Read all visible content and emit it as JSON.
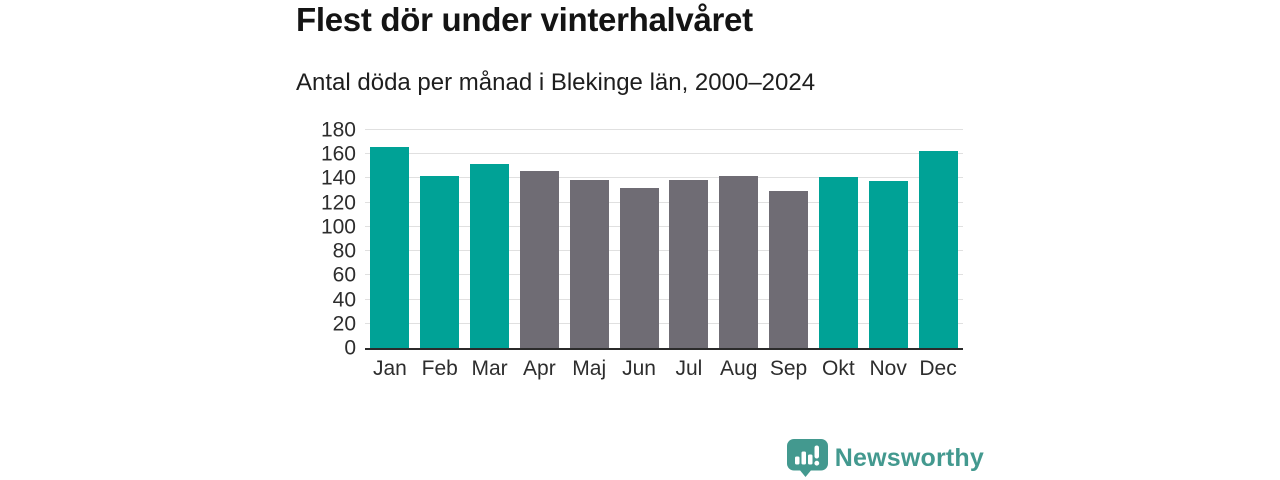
{
  "chart_data": {
    "type": "bar",
    "title": "Flest dör under vinterhalvåret",
    "subtitle": "Antal döda per månad i Blekinge län, 2000–2024",
    "categories": [
      "Jan",
      "Feb",
      "Mar",
      "Apr",
      "Maj",
      "Jun",
      "Jul",
      "Aug",
      "Sep",
      "Okt",
      "Nov",
      "Dec"
    ],
    "values": [
      166,
      142,
      152,
      146,
      139,
      132,
      139,
      142,
      130,
      141,
      138,
      163
    ],
    "highlight_flags": [
      1,
      1,
      1,
      0,
      0,
      0,
      0,
      0,
      0,
      1,
      1,
      1
    ],
    "highlight_color": "#00A296",
    "base_color": "#6F6C74",
    "xlabel": "",
    "ylabel": "",
    "ylim": [
      0,
      180
    ],
    "yticks": [
      0,
      20,
      40,
      60,
      80,
      100,
      120,
      140,
      160,
      180
    ],
    "grid": "horizontal",
    "gridline_color": "#E0E0E0",
    "axis_color": "#2B2B2B",
    "legend": "none"
  },
  "footer": {
    "brand": "Newsworthy",
    "brand_color": "#43998F",
    "logo_icon": "bar-chart-speech-bubble-icon"
  }
}
